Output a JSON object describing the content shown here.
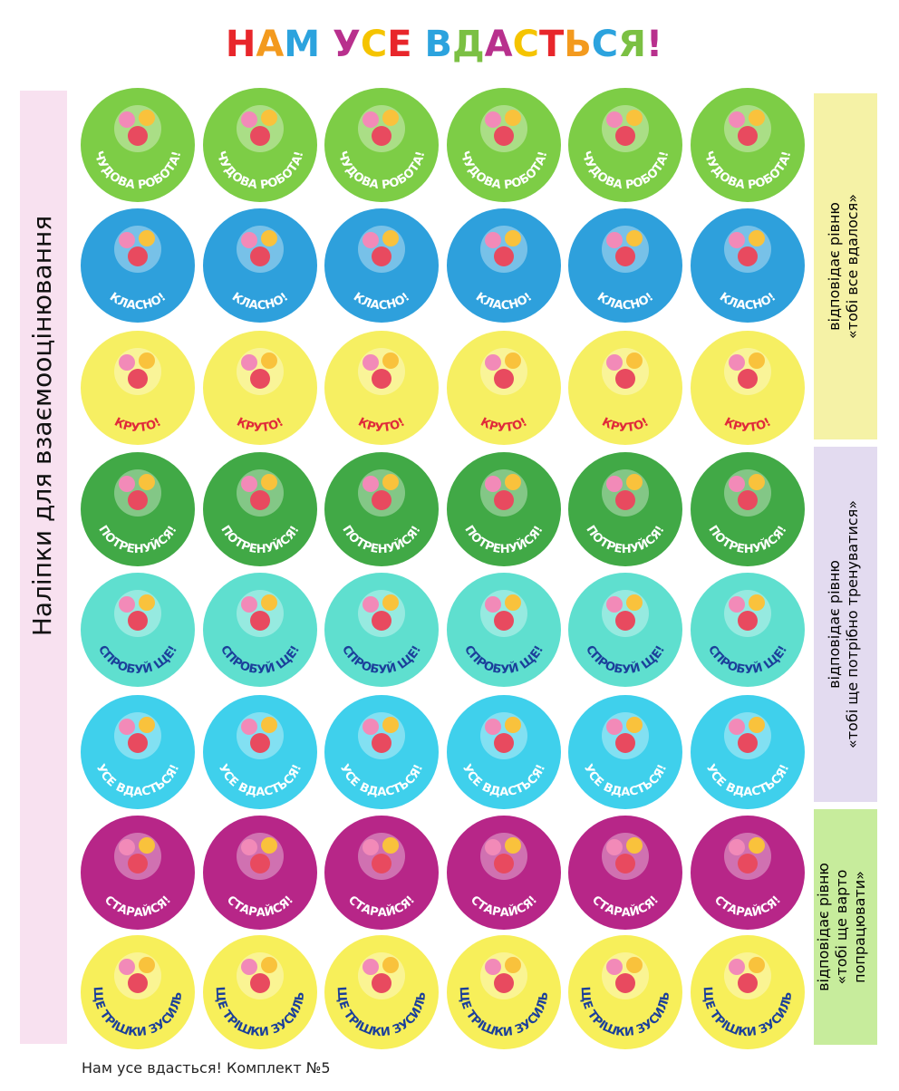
{
  "title": "НАМ УСЕ ВДАСТЬСЯ!",
  "side_label": "Наліпки для взаємооцінювання",
  "levels": [
    {
      "line1": "відповідає рівню",
      "line2": "«тобі все вдалося»"
    },
    {
      "line1": "відповідає рівню",
      "line2": "«тобі ще потрібно тренуватися»"
    },
    {
      "line1": "відповідає рівню",
      "line2": "«тобі ще варто",
      "line3": "попрацювати»"
    }
  ],
  "sticker_rows": [
    {
      "label": "ЧУДОВА РОБОТА!",
      "color": "#7dcd46",
      "text_color": "#ffffff"
    },
    {
      "label": "КЛАСНО!",
      "color": "#2ea0dc",
      "text_color": "#ffffff"
    },
    {
      "label": "КРУТО!",
      "color": "#f6ef62",
      "text_color": "#e02a3a"
    },
    {
      "label": "ПОТРЕНУЙСЯ!",
      "color": "#41a946",
      "text_color": "#ffffff"
    },
    {
      "label": "СПРОБУЙ ЩЕ!",
      "color": "#5fdfcf",
      "text_color": "#1b3f9a"
    },
    {
      "label": "УСЕ ВДАСТЬСЯ!",
      "color": "#3fd0ec",
      "text_color": "#ffffff"
    },
    {
      "label": "СТАРАЙСЯ!",
      "color": "#b72688",
      "text_color": "#ffffff"
    },
    {
      "label": "ЩЕ ТРІШКИ ЗУСИЛЬ!",
      "color": "#f7ef5a",
      "text_color": "#1b3f9a"
    }
  ],
  "footer": "Нам усе вдасться! Комплект №5"
}
